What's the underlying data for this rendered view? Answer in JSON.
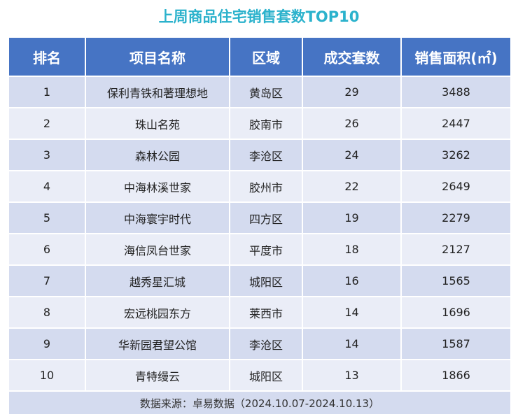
{
  "title": "上周商品住宅销售套数TOP10",
  "headers": [
    "排名",
    "项目名称",
    "区域",
    "成交套数",
    "销售面积(㎡)"
  ],
  "rows": [
    {
      "rank": "1",
      "name": "保利青铁和著理想地",
      "area": "黄岛区",
      "units": "29",
      "sqm": "3488"
    },
    {
      "rank": "2",
      "name": "珠山名苑",
      "area": "胶南市",
      "units": "26",
      "sqm": "2447"
    },
    {
      "rank": "3",
      "name": "森林公园",
      "area": "李沧区",
      "units": "24",
      "sqm": "3262"
    },
    {
      "rank": "4",
      "name": "中海林溪世家",
      "area": "胶州市",
      "units": "22",
      "sqm": "2649"
    },
    {
      "rank": "5",
      "name": "中海寰宇时代",
      "area": "四方区",
      "units": "19",
      "sqm": "2279"
    },
    {
      "rank": "6",
      "name": "海信凤台世家",
      "area": "平度市",
      "units": "18",
      "sqm": "2127"
    },
    {
      "rank": "7",
      "name": "越秀星汇城",
      "area": "城阳区",
      "units": "16",
      "sqm": "1565"
    },
    {
      "rank": "8",
      "name": "宏远桃园东方",
      "area": "莱西市",
      "units": "14",
      "sqm": "1696"
    },
    {
      "rank": "9",
      "name": "华新园君望公馆",
      "area": "李沧区",
      "units": "14",
      "sqm": "1587"
    },
    {
      "rank": "10",
      "name": "青特缦云",
      "area": "城阳区",
      "units": "13",
      "sqm": "1866"
    }
  ],
  "source": "数据来源：卓易数据（2024.10.07-2024.10.13）",
  "colors": {
    "title": "#2bb2cc",
    "header_bg": "#4674c4",
    "row_odd": "#d4dbef",
    "row_even": "#eaedf7"
  }
}
